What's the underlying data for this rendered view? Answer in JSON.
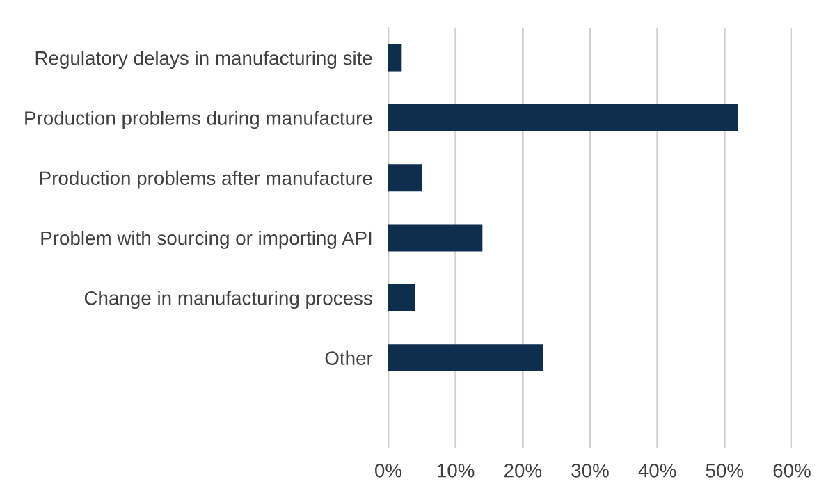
{
  "chart_data": {
    "type": "bar",
    "orientation": "horizontal",
    "categories": [
      "Regulatory delays in manufacturing site",
      "Production problems during manufacture",
      "Production problems after manufacture",
      "Problem with sourcing or importing API",
      "Change in manufacturing process",
      "Other"
    ],
    "values": [
      2,
      52,
      5,
      14,
      4,
      23
    ],
    "color": "#0f2d4d",
    "xlim": [
      0,
      60
    ],
    "xticks": [
      {
        "value": 0,
        "label": "0%"
      },
      {
        "value": 10,
        "label": "10%"
      },
      {
        "value": 20,
        "label": "20%"
      },
      {
        "value": 30,
        "label": "30%"
      },
      {
        "value": 40,
        "label": "40%"
      },
      {
        "value": 50,
        "label": "50%"
      },
      {
        "value": 60,
        "label": "60%"
      }
    ],
    "grid": "x"
  }
}
